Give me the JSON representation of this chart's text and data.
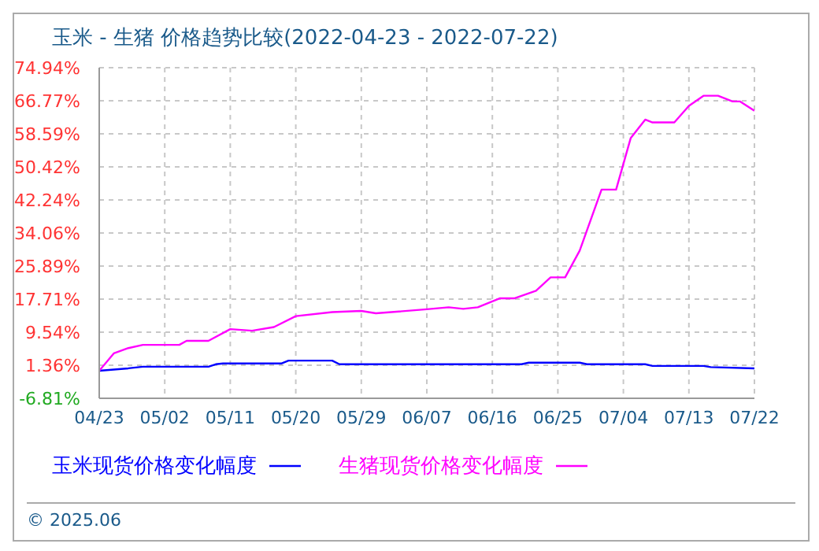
{
  "chart_data": {
    "type": "line",
    "title": "玉米 - 生猪 价格趋势比较(2022-04-23 - 2022-07-22)",
    "xlim": [
      "2022-04-23",
      "2022-07-22"
    ],
    "xticks": [
      {
        "value": "2022-04-23",
        "label": "04/23"
      },
      {
        "value": "2022-05-02",
        "label": "05/02"
      },
      {
        "value": "2022-05-11",
        "label": "05/11"
      },
      {
        "value": "2022-05-20",
        "label": "05/20"
      },
      {
        "value": "2022-05-29",
        "label": "05/29"
      },
      {
        "value": "2022-06-07",
        "label": "06/07"
      },
      {
        "value": "2022-06-16",
        "label": "06/16"
      },
      {
        "value": "2022-06-25",
        "label": "06/25"
      },
      {
        "value": "2022-07-04",
        "label": "07/04"
      },
      {
        "value": "2022-07-13",
        "label": "07/13"
      },
      {
        "value": "2022-07-22",
        "label": "07/22"
      }
    ],
    "ylim": [
      -6.81,
      74.94
    ],
    "yticks": [
      {
        "value": -6.81,
        "label": "-6.81%"
      },
      {
        "value": 1.36,
        "label": "1.36%"
      },
      {
        "value": 9.54,
        "label": "9.54%"
      },
      {
        "value": 17.71,
        "label": "17.71%"
      },
      {
        "value": 25.89,
        "label": "25.89%"
      },
      {
        "value": 34.06,
        "label": "34.06%"
      },
      {
        "value": 42.24,
        "label": "42.24%"
      },
      {
        "value": 50.42,
        "label": "50.42%"
      },
      {
        "value": 58.59,
        "label": "58.59%"
      },
      {
        "value": 66.77,
        "label": "66.77%"
      },
      {
        "value": 74.94,
        "label": "74.94%"
      }
    ],
    "grid": true,
    "legend": "bottom",
    "marker": "none",
    "series": [
      {
        "name": "玉米现货价格变化幅度",
        "color": "#0000ff",
        "x": [
          "2022-04-23",
          "2022-04-27",
          "2022-04-29",
          "2022-05-08",
          "2022-05-09",
          "2022-05-10",
          "2022-05-18",
          "2022-05-19",
          "2022-05-25",
          "2022-05-26",
          "2022-06-20",
          "2022-06-21",
          "2022-06-28",
          "2022-06-29",
          "2022-07-07",
          "2022-07-08",
          "2022-07-15",
          "2022-07-16",
          "2022-07-22"
        ],
        "values": [
          0,
          0.6,
          1.0,
          1.0,
          1.6,
          1.8,
          1.8,
          2.5,
          2.5,
          1.6,
          1.6,
          2.0,
          2.0,
          1.6,
          1.6,
          1.2,
          1.2,
          0.9,
          0.6
        ]
      },
      {
        "name": "生猪现货价格变化幅度",
        "color": "#ff00ff",
        "x": [
          "2022-04-23",
          "2022-04-25",
          "2022-04-27",
          "2022-04-29",
          "2022-05-04",
          "2022-05-05",
          "2022-05-08",
          "2022-05-11",
          "2022-05-14",
          "2022-05-17",
          "2022-05-20",
          "2022-05-25",
          "2022-05-29",
          "2022-05-31",
          "2022-06-07",
          "2022-06-10",
          "2022-06-12",
          "2022-06-14",
          "2022-06-17",
          "2022-06-19",
          "2022-06-22",
          "2022-06-24",
          "2022-06-26",
          "2022-06-28",
          "2022-07-01",
          "2022-07-03",
          "2022-07-05",
          "2022-07-07",
          "2022-07-08",
          "2022-07-11",
          "2022-07-13",
          "2022-07-15",
          "2022-07-17",
          "2022-07-19",
          "2022-07-20",
          "2022-07-22"
        ],
        "values": [
          0,
          4.3,
          5.6,
          6.4,
          6.4,
          7.4,
          7.4,
          10.3,
          9.9,
          10.8,
          13.5,
          14.5,
          14.8,
          14.2,
          15.2,
          15.7,
          15.3,
          15.7,
          17.9,
          17.9,
          19.8,
          23.1,
          23.1,
          29.7,
          44.8,
          44.8,
          57.5,
          62.1,
          61.4,
          61.4,
          65.5,
          68.0,
          68.0,
          66.6,
          66.6,
          64.3
        ]
      }
    ],
    "annotations": [
      "© 2025.06"
    ]
  }
}
